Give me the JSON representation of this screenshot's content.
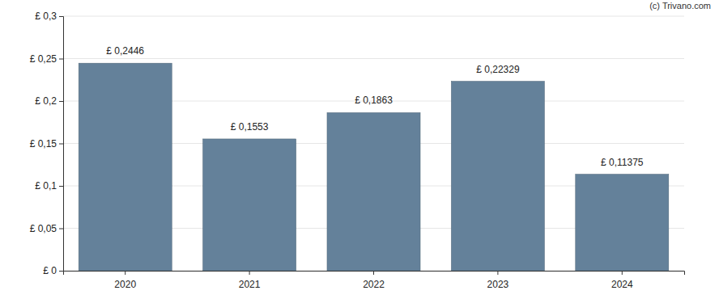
{
  "chart_data": {
    "type": "bar",
    "categories": [
      "2020",
      "2021",
      "2022",
      "2023",
      "2024"
    ],
    "values": [
      0.2446,
      0.1553,
      0.1863,
      0.22329,
      0.11375
    ],
    "value_labels": [
      "£ 0,2446",
      "£ 0,1553",
      "£ 0,1863",
      "£ 0,22329",
      "£ 0,11375"
    ],
    "color": "#64819a",
    "ylim": [
      0,
      0.3
    ],
    "yticks": [
      {
        "value": 0,
        "label": "£ 0"
      },
      {
        "value": 0.05,
        "label": "£ 0,05"
      },
      {
        "value": 0.1,
        "label": "£ 0,1"
      },
      {
        "value": 0.15,
        "label": "£ 0,15"
      },
      {
        "value": 0.2,
        "label": "£ 0,2"
      },
      {
        "value": 0.25,
        "label": "£ 0,25"
      },
      {
        "value": 0.3,
        "label": "£ 0,3"
      }
    ],
    "grid": true,
    "data_labels": true,
    "annotations": [
      "(c) Trivano.com"
    ]
  }
}
